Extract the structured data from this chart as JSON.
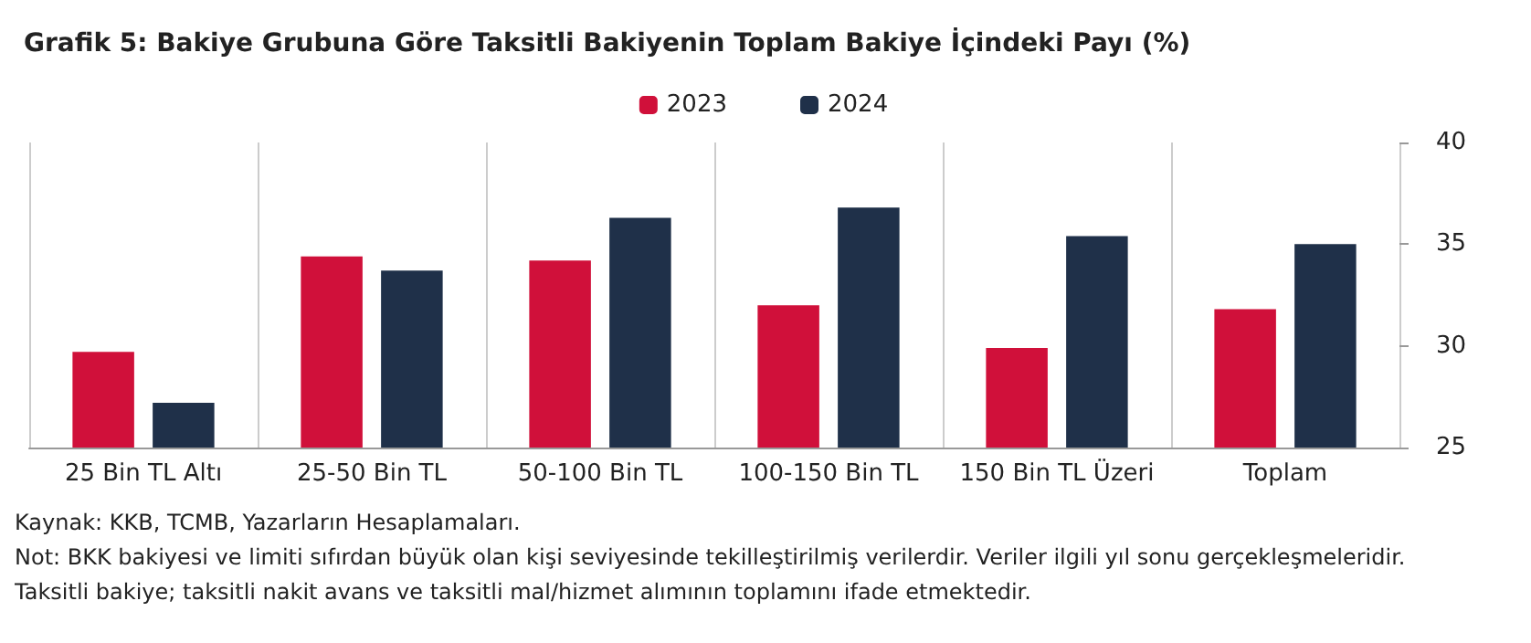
{
  "chart_data": {
    "type": "bar",
    "title": "Grafik 5: Bakiye Grubuna Göre Taksitli Bakiyenin Toplam Bakiye İçindeki Payı (%)",
    "categories": [
      "25 Bin TL Altı",
      "25-50 Bin TL",
      "50-100 Bin TL",
      "100-150 Bin TL",
      "150 Bin TL Üzeri",
      "Toplam"
    ],
    "series": [
      {
        "name": "2023",
        "color": "#d0103a",
        "values": [
          29.7,
          34.4,
          34.2,
          32.0,
          29.9,
          31.8
        ]
      },
      {
        "name": "2024",
        "color": "#1f3049",
        "values": [
          27.2,
          33.7,
          36.3,
          36.8,
          35.4,
          35.0
        ]
      }
    ],
    "ylim": [
      25,
      40
    ],
    "yticks": [
      25,
      30,
      35,
      40
    ],
    "grid": "x",
    "legend": "top",
    "annotations": [
      "Kaynak: KKB, TCMB, Yazarların Hesaplamaları.",
      "Not: BKK bakiyesi ve limiti sıfırdan büyük olan kişi seviyesinde tekilleştirilmiş verilerdir. Veriler ilgili yıl sonu gerçekleşmeleridir.",
      "Taksitli bakiye; taksitli nakit avans ve taksitli mal/hizmet alımının toplamını ifade etmektedir."
    ]
  }
}
